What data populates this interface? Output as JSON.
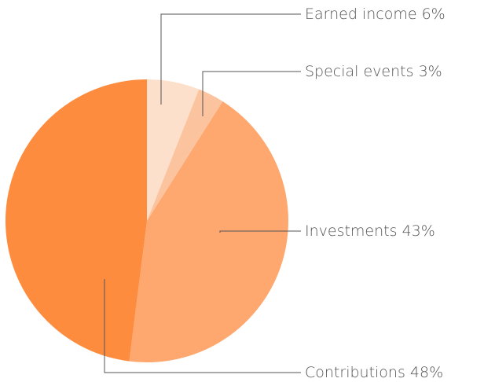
{
  "chart_data": {
    "type": "pie",
    "categories": [
      "Earned income",
      "Special events",
      "Investments",
      "Contributions"
    ],
    "values": [
      6,
      3,
      43,
      48
    ],
    "value_labels": [
      "6%",
      "3%",
      "43%",
      "48%"
    ],
    "colors": [
      "#fde0cc",
      "#fcc49e",
      "#fea86f",
      "#fd8c3f"
    ]
  }
}
